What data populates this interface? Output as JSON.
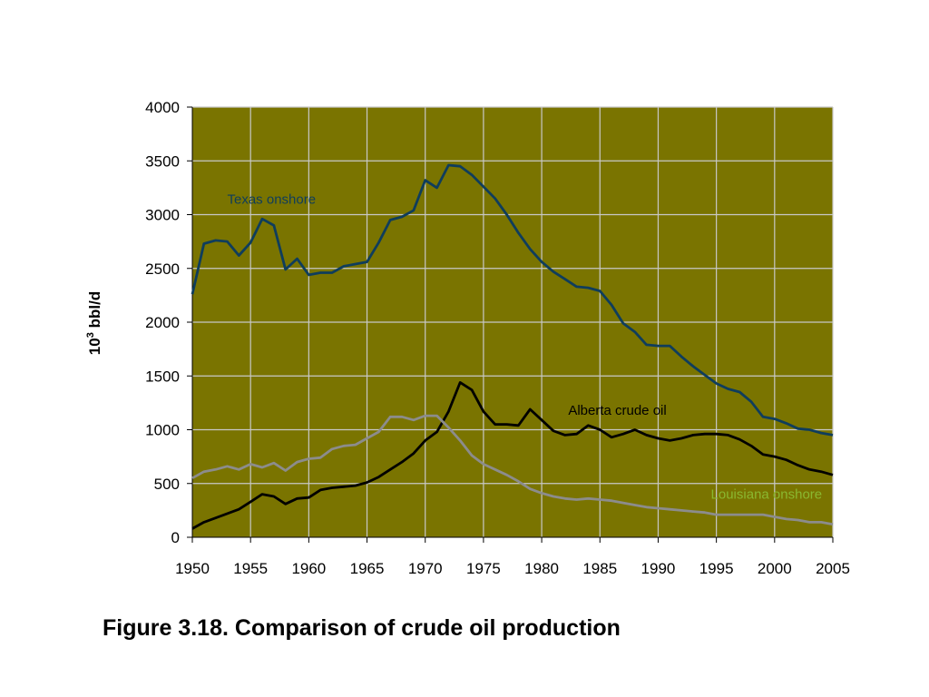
{
  "caption": "Figure 3.18.  Comparison of crude oil production",
  "chart_data": {
    "type": "line",
    "ylabel_base": "10",
    "ylabel_sup": "3",
    "ylabel_rest": " bbl/d",
    "ylim": [
      0,
      4000
    ],
    "yticks": [
      0,
      500,
      1000,
      1500,
      2000,
      2500,
      3000,
      3500,
      4000
    ],
    "xlim": [
      1950,
      2005
    ],
    "xticks": [
      1950,
      1955,
      1960,
      1965,
      1970,
      1975,
      1980,
      1985,
      1990,
      1995,
      2000,
      2005
    ],
    "grid": true,
    "plot_background": "#7a7400",
    "grid_color": "#c8c8c8",
    "series": [
      {
        "name": "Texas onshore",
        "color": "#0f3d5c",
        "x": [
          1950,
          1951,
          1952,
          1953,
          1954,
          1955,
          1956,
          1957,
          1958,
          1959,
          1960,
          1961,
          1962,
          1963,
          1964,
          1965,
          1966,
          1967,
          1968,
          1969,
          1970,
          1971,
          1972,
          1973,
          1974,
          1975,
          1976,
          1977,
          1978,
          1979,
          1980,
          1981,
          1982,
          1983,
          1984,
          1985,
          1986,
          1987,
          1988,
          1989,
          1990,
          1991,
          1992,
          1993,
          1994,
          1995,
          1996,
          1997,
          1998,
          1999,
          2000,
          2001,
          2002,
          2003,
          2004,
          2005
        ],
        "y": [
          2260,
          2730,
          2760,
          2750,
          2620,
          2740,
          2960,
          2900,
          2490,
          2590,
          2440,
          2460,
          2460,
          2520,
          2540,
          2560,
          2740,
          2950,
          2980,
          3040,
          3320,
          3250,
          3460,
          3450,
          3370,
          3260,
          3150,
          3000,
          2830,
          2680,
          2560,
          2470,
          2400,
          2330,
          2320,
          2290,
          2160,
          1990,
          1910,
          1790,
          1780,
          1780,
          1680,
          1590,
          1510,
          1430,
          1380,
          1350,
          1260,
          1120,
          1100,
          1060,
          1010,
          1000,
          970,
          950
        ]
      },
      {
        "name": "Alberta crude oil",
        "color": "#000000",
        "x": [
          1950,
          1951,
          1952,
          1953,
          1954,
          1955,
          1956,
          1957,
          1958,
          1959,
          1960,
          1961,
          1962,
          1963,
          1964,
          1965,
          1966,
          1967,
          1968,
          1969,
          1970,
          1971,
          1972,
          1973,
          1974,
          1975,
          1976,
          1977,
          1978,
          1979,
          1980,
          1981,
          1982,
          1983,
          1984,
          1985,
          1986,
          1987,
          1988,
          1989,
          1990,
          1991,
          1992,
          1993,
          1994,
          1995,
          1996,
          1997,
          1998,
          1999,
          2000,
          2001,
          2002,
          2003,
          2004,
          2005
        ],
        "y": [
          80,
          140,
          180,
          220,
          260,
          330,
          400,
          380,
          310,
          360,
          370,
          440,
          460,
          470,
          480,
          510,
          560,
          630,
          700,
          780,
          900,
          980,
          1170,
          1440,
          1370,
          1170,
          1050,
          1050,
          1040,
          1190,
          1090,
          990,
          950,
          960,
          1040,
          1000,
          930,
          960,
          1000,
          950,
          920,
          900,
          920,
          950,
          960,
          960,
          950,
          910,
          850,
          770,
          750,
          720,
          670,
          630,
          610,
          580
        ]
      },
      {
        "name": "Louisiana onshore",
        "color": "#8c8c8c",
        "label_color": "#8ab830",
        "x": [
          1950,
          1951,
          1952,
          1953,
          1954,
          1955,
          1956,
          1957,
          1958,
          1959,
          1960,
          1961,
          1962,
          1963,
          1964,
          1965,
          1966,
          1967,
          1968,
          1969,
          1970,
          1971,
          1972,
          1973,
          1974,
          1975,
          1976,
          1977,
          1978,
          1979,
          1980,
          1981,
          1982,
          1983,
          1984,
          1985,
          1986,
          1987,
          1988,
          1989,
          1990,
          1991,
          1992,
          1993,
          1994,
          1995,
          1996,
          1997,
          1998,
          1999,
          2000,
          2001,
          2002,
          2003,
          2004,
          2005
        ],
        "y": [
          550,
          610,
          630,
          660,
          630,
          680,
          650,
          690,
          620,
          700,
          730,
          740,
          820,
          850,
          860,
          920,
          980,
          1120,
          1120,
          1090,
          1130,
          1130,
          1020,
          900,
          760,
          680,
          630,
          580,
          520,
          450,
          410,
          380,
          360,
          350,
          360,
          350,
          340,
          320,
          300,
          280,
          270,
          260,
          250,
          240,
          230,
          210,
          210,
          210,
          210,
          210,
          190,
          170,
          160,
          140,
          140,
          120
        ]
      }
    ]
  }
}
